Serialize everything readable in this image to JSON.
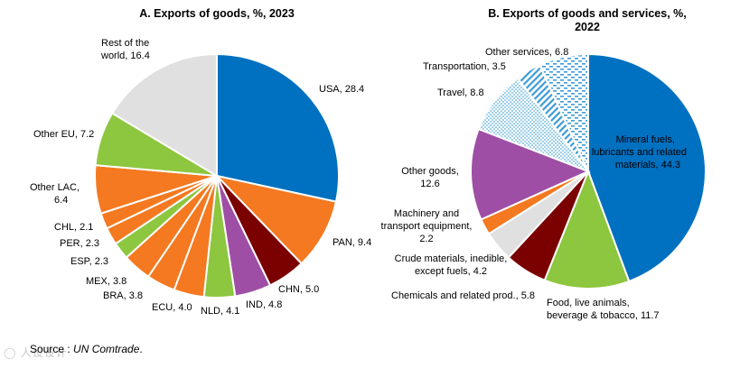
{
  "chart_data": [
    {
      "type": "pie",
      "title": "A. Exports of goods, %, 2023",
      "slices": [
        {
          "label": "USA",
          "value": 28.4,
          "color": "#0070c0"
        },
        {
          "label": "PAN",
          "value": 9.4,
          "color": "#f47920"
        },
        {
          "label": "CHN",
          "value": 5.0,
          "color": "#7b0000"
        },
        {
          "label": "IND",
          "value": 4.8,
          "color": "#9e4fa5"
        },
        {
          "label": "NLD",
          "value": 4.1,
          "color": "#8dc63f"
        },
        {
          "label": "ECU",
          "value": 4.0,
          "color": "#f47920"
        },
        {
          "label": "BRA",
          "value": 3.8,
          "color": "#f47920"
        },
        {
          "label": "MEX",
          "value": 3.8,
          "color": "#f47920"
        },
        {
          "label": "ESP",
          "value": 2.3,
          "color": "#8dc63f"
        },
        {
          "label": "PER",
          "value": 2.3,
          "color": "#f47920"
        },
        {
          "label": "CHL",
          "value": 2.1,
          "color": "#f47920"
        },
        {
          "label": "Other LAC",
          "value": 6.4,
          "color": "#f47920"
        },
        {
          "label": "Other EU",
          "value": 7.2,
          "color": "#8dc63f"
        },
        {
          "label": "Rest of the world",
          "value": 16.4,
          "color": "#e0e0e0"
        }
      ],
      "labels_text": {
        "USA": "USA, 28.4",
        "PAN": "PAN, 9.4",
        "CHN": "CHN, 5.0",
        "IND": "IND, 4.8",
        "NLD": "NLD, 4.1",
        "ECU": "ECU, 4.0",
        "BRA": "BRA, 3.8",
        "MEX": "MEX, 3.8",
        "ESP": "ESP, 2.3",
        "PER": "PER, 2.3",
        "CHL": "CHL, 2.1",
        "Other LAC": [
          "Other LAC,",
          "6.4"
        ],
        "Other EU": "Other EU, 7.2",
        "Rest of the world": [
          "Rest of the",
          "world, 16.4"
        ]
      }
    },
    {
      "type": "pie",
      "title": [
        "B. Exports of goods and services, %,",
        "2022"
      ],
      "slices": [
        {
          "label": "Mineral fuels, lubricants and related materials",
          "value": 44.3,
          "color": "#0070c0"
        },
        {
          "label": "Food, live animals, beverage & tobacco",
          "value": 11.7,
          "color": "#8dc63f"
        },
        {
          "label": "Chemicals and related prod.",
          "value": 5.8,
          "color": "#7b0000"
        },
        {
          "label": "Crude materials, inedible, except fuels",
          "value": 4.2,
          "color": "#e0e0e0"
        },
        {
          "label": "Machinery and transport equipment",
          "value": 2.2,
          "color": "#f47920"
        },
        {
          "label": "Other goods",
          "value": 12.6,
          "color": "#9e4fa5"
        },
        {
          "label": "Travel",
          "value": 8.8,
          "color": "#9ad0ec",
          "pattern": "dots"
        },
        {
          "label": "Transportation",
          "value": 3.5,
          "color": "#6fb7e0",
          "pattern": "diagonal"
        },
        {
          "label": "Other services",
          "value": 6.8,
          "color": "#6fb7e0",
          "pattern": "dashes"
        }
      ],
      "labels_text": {
        "mineral": [
          "Mineral fuels,",
          "lubricants and related",
          "materials, 44.3"
        ],
        "food": [
          "Food, live animals,",
          "beverage & tobacco, 11.7"
        ],
        "chem": "Chemicals and related prod., 5.8",
        "crude": [
          "Crude materials, inedible,",
          "except fuels, 4.2"
        ],
        "mach": [
          "Machinery and",
          "transport equipment,",
          "2.2"
        ],
        "other_goods": [
          "Other goods,",
          "12.6"
        ],
        "travel": "Travel, 8.8",
        "transport": "Transportation, 3.5",
        "other_services": "Other services, 6.8"
      }
    }
  ],
  "source": {
    "prefix": "Source : ",
    "name": "UN Comtrade",
    "suffix": "."
  },
  "watermark": "◯ 人设设计"
}
